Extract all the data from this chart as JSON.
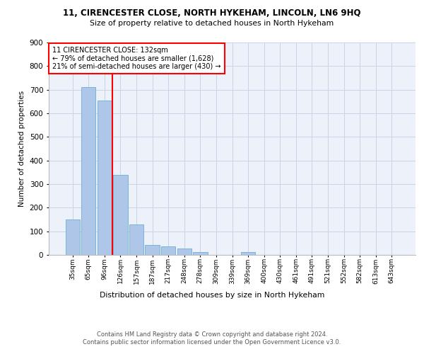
{
  "title1": "11, CIRENCESTER CLOSE, NORTH HYKEHAM, LINCOLN, LN6 9HQ",
  "title2": "Size of property relative to detached houses in North Hykeham",
  "xlabel": "Distribution of detached houses by size in North Hykeham",
  "ylabel": "Number of detached properties",
  "categories": [
    "35sqm",
    "65sqm",
    "96sqm",
    "126sqm",
    "157sqm",
    "187sqm",
    "217sqm",
    "248sqm",
    "278sqm",
    "309sqm",
    "339sqm",
    "369sqm",
    "400sqm",
    "430sqm",
    "461sqm",
    "491sqm",
    "521sqm",
    "552sqm",
    "582sqm",
    "613sqm",
    "643sqm"
  ],
  "values": [
    150,
    710,
    655,
    340,
    130,
    42,
    35,
    27,
    12,
    0,
    0,
    12,
    0,
    0,
    0,
    0,
    0,
    0,
    0,
    0,
    0
  ],
  "bar_color": "#aec6e8",
  "bar_edge_color": "#6baed6",
  "grid_color": "#c8d4e8",
  "vline_x_index": 3,
  "vline_color": "red",
  "annotation_text": "11 CIRENCESTER CLOSE: 132sqm\n← 79% of detached houses are smaller (1,628)\n21% of semi-detached houses are larger (430) →",
  "annotation_box_color": "white",
  "annotation_box_edge_color": "red",
  "ylim": [
    0,
    900
  ],
  "yticks": [
    0,
    100,
    200,
    300,
    400,
    500,
    600,
    700,
    800,
    900
  ],
  "footer": "Contains HM Land Registry data © Crown copyright and database right 2024.\nContains public sector information licensed under the Open Government Licence v3.0.",
  "bg_color": "#edf2fa"
}
